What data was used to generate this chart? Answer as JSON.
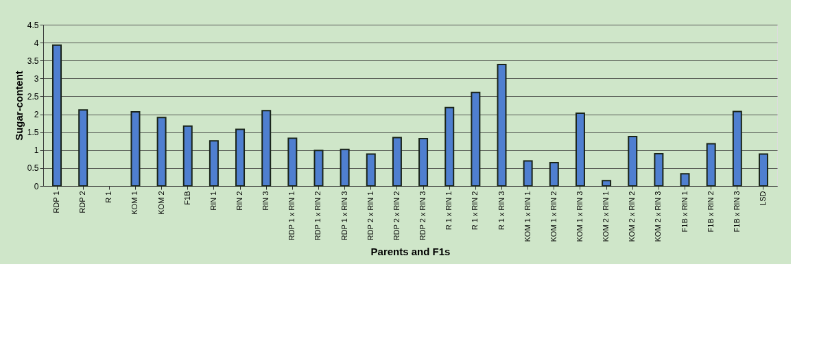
{
  "chart_data": {
    "type": "bar",
    "xlabel": "Parents and F1s",
    "ylabel": "Sugar-content",
    "categories": [
      "RDP 1",
      "RDP 2",
      "R 1",
      "KOM 1",
      "KOM 2",
      "F1B",
      "RIN 1",
      "RIN 2",
      "RIN 3",
      "RDP 1 x RIN 1",
      "RDP 1 x RIN 2",
      "RDP 1 x RIN 3",
      "RDP 2 x RIN 1",
      "RDP 2 x RIN 2",
      "RDP 2 x RIN 3",
      "R 1 x RIN 1",
      "R 1 x RIN 2",
      "R 1 x RIN 3",
      "KOM 1 x RIN 1",
      "KOM 1 x RIN 2",
      "KOM 1 x RIN 3",
      "KOM 2 x RIN 1",
      "KOM 2 x RIN 2",
      "KOM 2 x RIN 3",
      "F1B x RIN 1",
      "F1B x RIN 2",
      "F1B x RIN 3",
      "LSD"
    ],
    "values": [
      3.93,
      2.12,
      null,
      2.07,
      1.91,
      1.67,
      1.26,
      1.58,
      2.1,
      1.33,
      0.99,
      1.02,
      0.89,
      1.35,
      1.32,
      2.19,
      2.61,
      3.39,
      0.7,
      0.65,
      2.03,
      0.15,
      1.38,
      0.9,
      0.34,
      1.18,
      2.08,
      0.89
    ],
    "color": "#4f7fd0",
    "ylim": [
      0,
      4.5
    ],
    "yticks": [
      0,
      0.5,
      1,
      1.5,
      2,
      2.5,
      3,
      3.5,
      4,
      4.5
    ],
    "grid": "y"
  }
}
